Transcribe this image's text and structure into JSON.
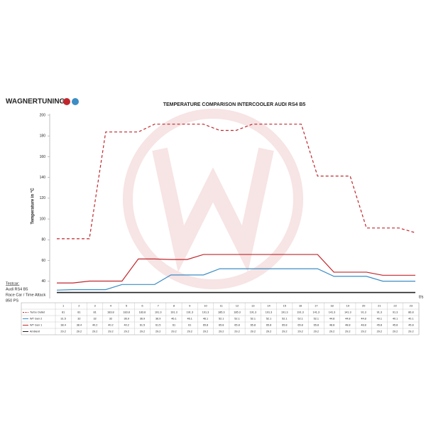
{
  "brand": "WAGNERTUNING",
  "testcar": {
    "heading": "Testcar:",
    "lines": [
      "Audi RS4 B5",
      "Race Car / Time Attack",
      "850 PS"
    ]
  },
  "chart_data": {
    "type": "line",
    "title": "TEMPERATURE COMPARISON INTERCOOLER AUDI RS4 B5",
    "y_label": "Temperature in °C",
    "x_label": "t/s",
    "categories": [
      "1",
      "2",
      "3",
      "4",
      "5",
      "6",
      "7",
      "8",
      "9",
      "10",
      "11",
      "12",
      "13",
      "14",
      "15",
      "16",
      "17",
      "18",
      "19",
      "20",
      "21",
      "22",
      "23"
    ],
    "ylim": [
      20,
      200
    ],
    "yticks": [
      40,
      60,
      80,
      100,
      120,
      140,
      160,
      180,
      200
    ],
    "series": [
      {
        "name": "Turbo Outlet",
        "color": "#c0272d",
        "style": "dashed",
        "values": [
          81,
          81,
          81,
          183.8,
          183.8,
          183.8,
          191.3,
          191.3,
          191.3,
          191.3,
          185.3,
          185.3,
          191.3,
          191.3,
          191.3,
          191.3,
          141.3,
          141.3,
          141.3,
          91.3,
          91.3,
          91.3,
          86.8
        ]
      },
      {
        "name": "WT Gen 2",
        "color": "#3c8dc5",
        "style": "solid",
        "values": [
          31.5,
          32,
          32,
          32,
          36.9,
          36.9,
          36.9,
          46.1,
          46.1,
          46.1,
          52.1,
          52.1,
          52.1,
          52.1,
          52.1,
          52.1,
          52.1,
          44.8,
          44.8,
          44.8,
          40.1,
          40.1,
          40.1
        ]
      },
      {
        "name": "WT Gen 1",
        "color": "#c0272d",
        "style": "solid",
        "values": [
          38.4,
          38.4,
          40.2,
          40.2,
          40.2,
          61.5,
          61.5,
          61.0,
          61.0,
          65.8,
          65.8,
          65.8,
          65.8,
          65.8,
          65.8,
          65.8,
          65.8,
          48.8,
          48.8,
          48.8,
          45.8,
          45.8,
          45.8
        ]
      },
      {
        "name": "Ambient",
        "color": "#222222",
        "style": "solid",
        "values": [
          29.2,
          29.2,
          29.2,
          29.2,
          29.2,
          29.2,
          29.2,
          29.2,
          29.2,
          29.2,
          29.2,
          29.2,
          29.2,
          29.2,
          29.2,
          29.2,
          29.2,
          29.2,
          29.2,
          29.2,
          29.2,
          29.2,
          29.2
        ]
      }
    ]
  }
}
